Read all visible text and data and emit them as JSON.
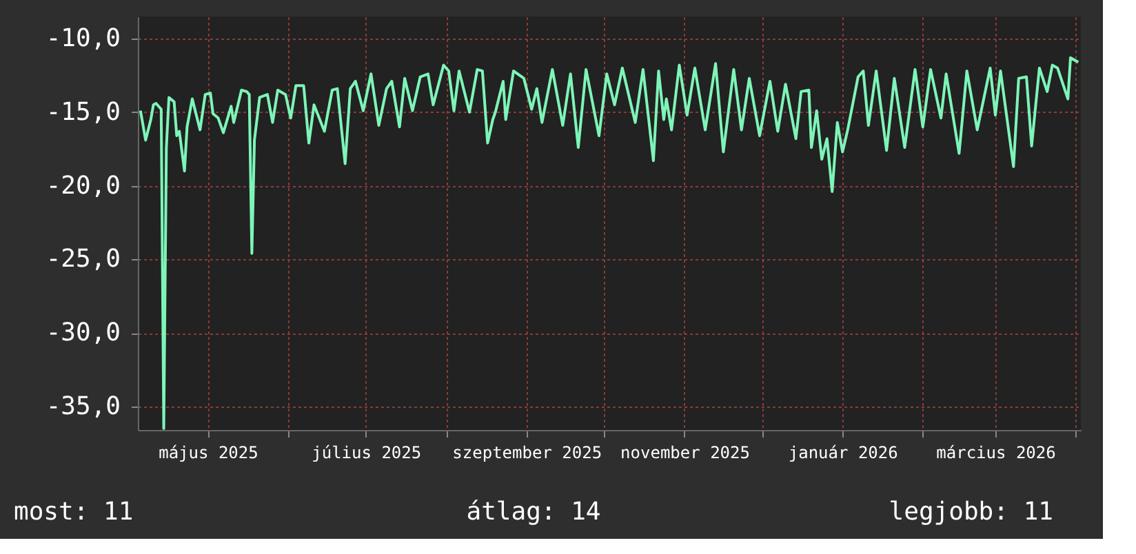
{
  "chart_data": {
    "type": "line",
    "x": [
      "2025-04-05",
      "2025-04-07",
      "2025-04-09",
      "2025-04-10",
      "2025-04-11",
      "2025-04-13",
      "2025-04-14",
      "2025-04-15",
      "2025-04-16",
      "2025-04-18",
      "2025-04-19",
      "2025-04-20",
      "2025-04-22",
      "2025-04-23",
      "2025-04-25",
      "2025-04-28",
      "2025-04-30",
      "2025-05-02",
      "2025-05-03",
      "2025-05-05",
      "2025-05-07",
      "2025-05-10",
      "2025-05-11",
      "2025-05-14",
      "2025-05-16",
      "2025-05-17",
      "2025-05-18",
      "2025-05-19",
      "2025-05-21",
      "2025-05-24",
      "2025-05-26",
      "2025-05-28",
      "2025-05-31",
      "2025-06-02",
      "2025-06-04",
      "2025-06-07",
      "2025-06-09",
      "2025-06-11",
      "2025-06-15",
      "2025-06-18",
      "2025-06-20",
      "2025-06-23",
      "2025-06-25",
      "2025-06-27",
      "2025-06-30",
      "2025-07-03",
      "2025-07-06",
      "2025-07-09",
      "2025-07-11",
      "2025-07-14",
      "2025-07-16",
      "2025-07-19",
      "2025-07-22",
      "2025-07-25",
      "2025-07-27",
      "2025-07-31",
      "2025-08-02",
      "2025-08-04",
      "2025-08-06",
      "2025-08-10",
      "2025-08-13",
      "2025-08-15",
      "2025-08-17",
      "2025-08-19",
      "2025-08-20",
      "2025-08-23",
      "2025-08-24",
      "2025-08-27",
      "2025-08-31",
      "2025-09-03",
      "2025-09-05",
      "2025-09-07",
      "2025-09-11",
      "2025-09-15",
      "2025-09-18",
      "2025-09-21",
      "2025-09-24",
      "2025-09-29",
      "2025-10-02",
      "2025-10-05",
      "2025-10-08",
      "2025-10-13",
      "2025-10-16",
      "2025-10-20",
      "2025-10-22",
      "2025-10-24",
      "2025-10-25",
      "2025-10-27",
      "2025-10-30",
      "2025-11-02",
      "2025-11-05",
      "2025-11-09",
      "2025-11-13",
      "2025-11-16",
      "2025-11-20",
      "2025-11-23",
      "2025-11-26",
      "2025-11-30",
      "2025-12-04",
      "2025-12-07",
      "2025-12-10",
      "2025-12-14",
      "2025-12-16",
      "2025-12-19",
      "2025-12-20",
      "2025-12-22",
      "2025-12-24",
      "2025-12-26",
      "2025-12-28",
      "2025-12-30",
      "2026-01-01",
      "2026-01-03",
      "2026-01-07",
      "2026-01-09",
      "2026-01-11",
      "2026-01-14",
      "2026-01-18",
      "2026-01-21",
      "2026-01-25",
      "2026-01-29",
      "2026-02-01",
      "2026-02-04",
      "2026-02-08",
      "2026-02-10",
      "2026-02-15",
      "2026-02-18",
      "2026-02-22",
      "2026-02-27",
      "2026-03-01",
      "2026-03-03",
      "2026-03-08",
      "2026-03-10",
      "2026-03-13",
      "2026-03-15",
      "2026-03-18",
      "2026-03-21",
      "2026-03-23",
      "2026-03-25",
      "2026-03-29",
      "2026-03-30",
      "2026-04-02"
    ],
    "series": [
      {
        "color": "#7df5b8",
        "values": [
          -14.9,
          -16.9,
          -15.5,
          -14.5,
          -14.4,
          -14.8,
          -36.5,
          -17.4,
          -14.0,
          -14.3,
          -16.6,
          -16.3,
          -19.0,
          -16.0,
          -14.1,
          -16.2,
          -13.8,
          -13.7,
          -15.1,
          -15.4,
          -16.4,
          -14.6,
          -15.7,
          -13.5,
          -13.6,
          -13.8,
          -24.6,
          -16.9,
          -14.0,
          -13.8,
          -15.7,
          -13.5,
          -13.8,
          -15.4,
          -13.2,
          -13.2,
          -17.1,
          -14.5,
          -16.3,
          -13.5,
          -13.4,
          -18.5,
          -13.4,
          -12.9,
          -14.9,
          -12.4,
          -15.9,
          -13.4,
          -12.9,
          -16.0,
          -12.7,
          -14.9,
          -12.6,
          -12.4,
          -14.5,
          -11.8,
          -12.2,
          -14.9,
          -12.2,
          -15.0,
          -12.1,
          -12.2,
          -17.1,
          -15.5,
          -15.0,
          -12.9,
          -15.5,
          -12.2,
          -12.7,
          -14.8,
          -13.4,
          -15.7,
          -12.1,
          -15.9,
          -12.4,
          -17.4,
          -12.1,
          -16.6,
          -12.4,
          -14.5,
          -12.0,
          -15.7,
          -12.1,
          -18.3,
          -12.2,
          -15.5,
          -14.1,
          -16.2,
          -11.8,
          -15.2,
          -12.0,
          -16.2,
          -11.7,
          -17.7,
          -12.1,
          -16.2,
          -12.7,
          -16.6,
          -12.9,
          -16.3,
          -13.1,
          -16.8,
          -13.6,
          -13.5,
          -17.4,
          -14.9,
          -18.2,
          -16.8,
          -20.4,
          -15.7,
          -17.7,
          -16.2,
          -12.6,
          -12.2,
          -15.9,
          -12.2,
          -17.6,
          -12.7,
          -17.4,
          -12.1,
          -16.0,
          -12.1,
          -15.4,
          -12.4,
          -17.8,
          -12.2,
          -16.2,
          -12.0,
          -15.2,
          -12.2,
          -18.7,
          -12.7,
          -12.6,
          -17.3,
          -12.0,
          -13.6,
          -11.8,
          -12.0,
          -14.1,
          -11.3,
          -11.6
        ]
      }
    ],
    "xlim": [
      "2025-04-04",
      "2026-04-03"
    ],
    "ylim": [
      -36.6,
      -8.5
    ],
    "xticks": [
      {
        "value": "2025-05-01",
        "label": "május 2025"
      },
      {
        "value": "2025-06-01",
        "label": null
      },
      {
        "value": "2025-07-01",
        "label": "július 2025"
      },
      {
        "value": "2025-08-01",
        "label": null
      },
      {
        "value": "2025-09-01",
        "label": "szeptember 2025"
      },
      {
        "value": "2025-10-01",
        "label": null
      },
      {
        "value": "2025-11-01",
        "label": "november 2025"
      },
      {
        "value": "2025-12-01",
        "label": null
      },
      {
        "value": "2026-01-01",
        "label": "január 2026"
      },
      {
        "value": "2026-02-01",
        "label": null
      },
      {
        "value": "2026-03-01",
        "label": "március 2026"
      },
      {
        "value": "2026-04-01",
        "label": null
      }
    ],
    "yticks": [
      {
        "value": -10,
        "label": "-10,0"
      },
      {
        "value": -15,
        "label": "-15,0"
      },
      {
        "value": -20,
        "label": "-20,0"
      },
      {
        "value": -25,
        "label": "-25,0"
      },
      {
        "value": -30,
        "label": "-30,0"
      },
      {
        "value": -35,
        "label": "-35,0"
      }
    ],
    "grid": true,
    "marker": "none",
    "line_style": "solid",
    "annotations": [
      "most: 11",
      "átlag: 14",
      "legjobb: 11"
    ]
  }
}
